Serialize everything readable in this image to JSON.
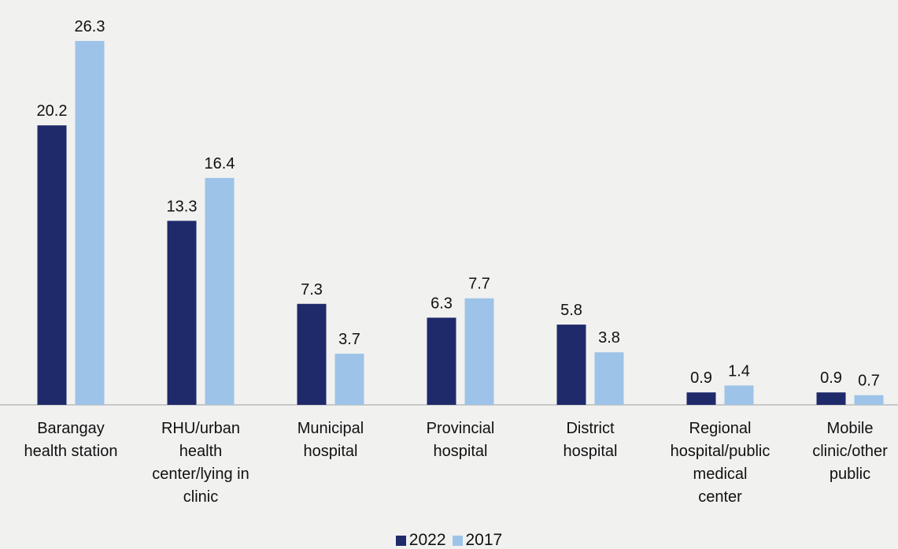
{
  "chart_data": {
    "type": "bar",
    "categories": [
      "Barangay\nhealth station",
      "RHU/urban\nhealth\ncenter/lying in\nclinic",
      "Municipal\nhospital",
      "Provincial\nhospital",
      "District\nhospital",
      "Regional\nhospital/public\nmedical\ncenter",
      "Mobile\nclinic/other\npublic"
    ],
    "series": [
      {
        "name": "2022",
        "color": "#1f2a6b",
        "values": [
          20.2,
          13.3,
          7.3,
          6.3,
          5.8,
          0.9,
          0.9
        ]
      },
      {
        "name": "2017",
        "color": "#9ec3e8",
        "values": [
          26.3,
          16.4,
          3.7,
          7.7,
          3.8,
          1.4,
          0.7
        ]
      }
    ],
    "legend": "bottom"
  }
}
